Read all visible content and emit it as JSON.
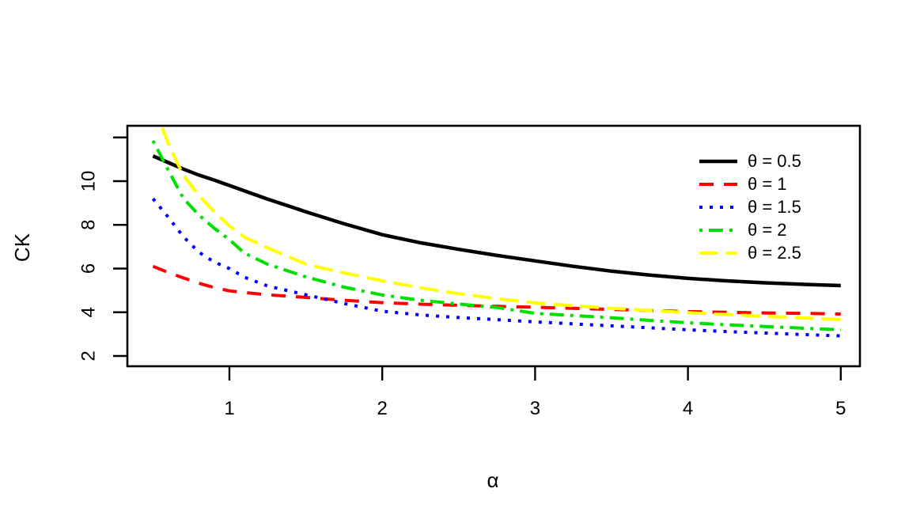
{
  "chart_data": {
    "type": "line",
    "title": "",
    "xlabel": "α",
    "ylabel": "CK",
    "xlim": [
      0.33,
      5.13
    ],
    "ylim": [
      1.5,
      12.55
    ],
    "grid": false,
    "legend_position": "top-right",
    "x_ticks": [
      1,
      2,
      3,
      4,
      5
    ],
    "x_tick_labels": [
      "1",
      "2",
      "3",
      "4",
      "5"
    ],
    "y_ticks": [
      2,
      4,
      6,
      8,
      10,
      12
    ],
    "y_tick_labels": [
      "2",
      "4",
      "6",
      "8",
      "10",
      ""
    ],
    "x": [
      0.5,
      0.6,
      0.7,
      0.8,
      0.9,
      1.0,
      1.1,
      1.25,
      1.5,
      1.75,
      2.0,
      2.25,
      2.5,
      2.75,
      3.0,
      3.25,
      3.5,
      3.75,
      4.0,
      4.25,
      4.5,
      4.75,
      5.0
    ],
    "series": [
      {
        "name": "θ = 0.5",
        "color": "#000000",
        "linetype": "solid",
        "linewidth": 4.5,
        "values": [
          11.15,
          10.85,
          10.55,
          10.28,
          10.05,
          9.8,
          9.55,
          9.18,
          8.6,
          8.05,
          7.55,
          7.18,
          6.88,
          6.6,
          6.35,
          6.1,
          5.88,
          5.7,
          5.55,
          5.44,
          5.35,
          5.28,
          5.22
        ]
      },
      {
        "name": "θ = 1",
        "color": "#ff0000",
        "linetype": "dashed",
        "linewidth": 4,
        "values": [
          6.1,
          5.82,
          5.57,
          5.33,
          5.13,
          4.98,
          4.9,
          4.8,
          4.68,
          4.55,
          4.44,
          4.37,
          4.32,
          4.27,
          4.23,
          4.18,
          4.13,
          4.08,
          4.03,
          4.0,
          3.97,
          3.95,
          3.92
        ]
      },
      {
        "name": "θ = 1.5",
        "color": "#0000ff",
        "linetype": "dotted",
        "linewidth": 4,
        "values": [
          9.2,
          8.35,
          7.45,
          6.75,
          6.3,
          6.0,
          5.6,
          5.2,
          4.8,
          4.4,
          4.05,
          3.88,
          3.76,
          3.66,
          3.56,
          3.47,
          3.38,
          3.29,
          3.2,
          3.12,
          3.05,
          2.98,
          2.92
        ]
      },
      {
        "name": "θ = 2",
        "color": "#00e000",
        "linetype": "dotdash",
        "linewidth": 4,
        "values": [
          11.85,
          10.5,
          9.2,
          8.45,
          7.85,
          7.32,
          6.7,
          6.2,
          5.62,
          5.15,
          4.79,
          4.55,
          4.38,
          4.22,
          3.95,
          3.85,
          3.75,
          3.63,
          3.52,
          3.43,
          3.35,
          3.27,
          3.2
        ]
      },
      {
        "name": "θ = 2.5",
        "color": "#ffff00",
        "linetype": "longdash",
        "linewidth": 4,
        "values": [
          13.6,
          11.7,
          10.25,
          9.35,
          8.6,
          7.95,
          7.43,
          6.95,
          6.2,
          5.8,
          5.44,
          5.12,
          4.85,
          4.62,
          4.43,
          4.3,
          4.18,
          4.08,
          3.98,
          3.9,
          3.82,
          3.74,
          3.67
        ]
      }
    ]
  }
}
